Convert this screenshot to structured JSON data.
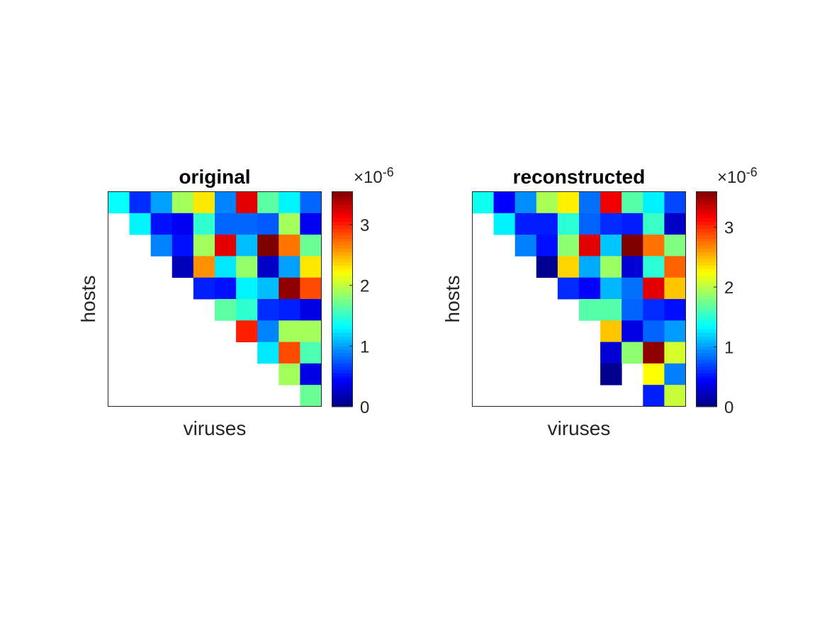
{
  "colormap": "jet",
  "chart_data": [
    {
      "type": "heatmap",
      "title": "original",
      "xlabel": "viruses",
      "ylabel": "hosts",
      "colorbar": {
        "ticks": [
          "0",
          "1",
          "2",
          "3"
        ],
        "tick_values": [
          0,
          1,
          2,
          3
        ],
        "range": [
          0,
          3.55
        ],
        "exponent_label": "×10",
        "exponent": "-6"
      },
      "value_unit_multiplier": 1e-06,
      "matrix": [
        [
          1.35,
          0.6,
          1.0,
          1.9,
          2.3,
          0.9,
          3.2,
          1.65,
          1.3,
          0.8
        ],
        [
          null,
          1.3,
          0.5,
          0.4,
          1.5,
          0.8,
          0.8,
          0.75,
          1.9,
          0.4
        ],
        [
          null,
          null,
          0.9,
          0.5,
          1.9,
          3.2,
          1.1,
          3.55,
          2.7,
          1.7
        ],
        [
          null,
          null,
          null,
          0.2,
          2.6,
          1.25,
          1.85,
          0.25,
          1.0,
          2.3
        ],
        [
          null,
          null,
          null,
          null,
          0.55,
          0.5,
          1.3,
          1.1,
          3.5,
          2.85
        ],
        [
          null,
          null,
          null,
          null,
          null,
          1.65,
          1.5,
          0.6,
          0.55,
          0.35
        ],
        [
          null,
          null,
          null,
          null,
          null,
          null,
          3.0,
          0.9,
          1.9,
          1.9
        ],
        [
          null,
          null,
          null,
          null,
          null,
          null,
          null,
          1.25,
          2.85,
          1.6
        ],
        [
          null,
          null,
          null,
          null,
          null,
          null,
          null,
          null,
          1.9,
          0.35
        ],
        [
          null,
          null,
          null,
          null,
          null,
          null,
          null,
          null,
          null,
          1.7
        ]
      ]
    },
    {
      "type": "heatmap",
      "title": "reconstructed",
      "xlabel": "viruses",
      "ylabel": "hosts",
      "colorbar": {
        "ticks": [
          "0",
          "1",
          "2",
          "3"
        ],
        "tick_values": [
          0,
          1,
          2,
          3
        ],
        "range": [
          0,
          3.6
        ],
        "exponent_label": "×10",
        "exponent": "-6"
      },
      "value_unit_multiplier": 1e-06,
      "matrix": [
        [
          1.4,
          0.45,
          0.95,
          1.95,
          2.3,
          0.85,
          3.2,
          1.65,
          1.3,
          0.7
        ],
        [
          null,
          1.3,
          0.55,
          0.55,
          1.5,
          0.8,
          0.6,
          0.55,
          1.55,
          0.25
        ],
        [
          null,
          null,
          0.9,
          0.5,
          1.85,
          3.25,
          1.15,
          3.6,
          2.75,
          1.8
        ],
        [
          null,
          null,
          null,
          0.05,
          2.4,
          1.05,
          1.9,
          0.3,
          1.5,
          2.8
        ],
        [
          null,
          null,
          null,
          null,
          0.6,
          0.45,
          1.1,
          0.85,
          3.25,
          2.45
        ],
        [
          null,
          null,
          null,
          null,
          null,
          1.65,
          1.65,
          0.8,
          0.6,
          0.5
        ],
        [
          null,
          null,
          null,
          null,
          null,
          null,
          2.45,
          0.35,
          0.8,
          1.0
        ],
        [
          null,
          null,
          null,
          null,
          null,
          null,
          0.3,
          1.85,
          3.55,
          2.1
        ],
        [
          null,
          null,
          null,
          null,
          null,
          null,
          0.05,
          null,
          2.25,
          0.9
        ],
        [
          null,
          null,
          null,
          null,
          null,
          null,
          null,
          null,
          0.55,
          2.05
        ]
      ]
    }
  ]
}
